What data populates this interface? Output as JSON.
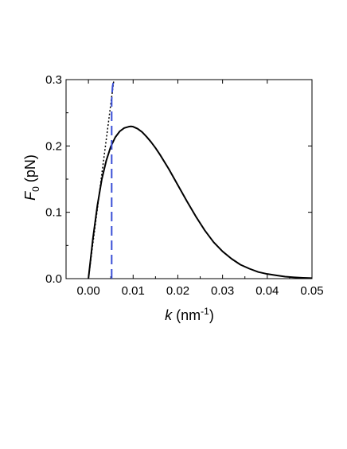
{
  "chart_data": {
    "type": "line",
    "title": "",
    "xlabel_var": "k",
    "xlabel_unit": " (nm",
    "xlabel_exp": "-1",
    "xlabel_close": ")",
    "ylabel_var": "F",
    "ylabel_sub": "0",
    "ylabel_unit": " (pN)",
    "xlim": [
      -0.005,
      0.05
    ],
    "ylim": [
      0,
      0.3
    ],
    "xticks": [
      0.0,
      0.01,
      0.02,
      0.03,
      0.04,
      0.05
    ],
    "xtick_labels": [
      "0.00",
      "0.01",
      "0.02",
      "0.03",
      "0.04",
      "0.05"
    ],
    "yticks": [
      0.0,
      0.1,
      0.2,
      0.3
    ],
    "ytick_labels": [
      "0.0",
      "0.1",
      "0.2",
      "0.3"
    ],
    "grid": false,
    "legend": "none",
    "series": [
      {
        "style": "solid",
        "color": "#000000",
        "x": [
          0,
          0.001,
          0.002,
          0.003,
          0.004,
          0.005,
          0.006,
          0.007,
          0.008,
          0.009,
          0.0095,
          0.01,
          0.011,
          0.012,
          0.013,
          0.014,
          0.015,
          0.016,
          0.018,
          0.02,
          0.022,
          0.024,
          0.026,
          0.028,
          0.03,
          0.032,
          0.034,
          0.036,
          0.038,
          0.04,
          0.042,
          0.044,
          0.046,
          0.048,
          0.05
        ],
        "y": [
          0,
          0.06,
          0.11,
          0.15,
          0.178,
          0.199,
          0.213,
          0.222,
          0.227,
          0.229,
          0.2295,
          0.229,
          0.226,
          0.221,
          0.214,
          0.206,
          0.197,
          0.187,
          0.165,
          0.141,
          0.117,
          0.094,
          0.073,
          0.055,
          0.041,
          0.03,
          0.021,
          0.015,
          0.01,
          0.007,
          0.005,
          0.003,
          0.002,
          0.0012,
          0.0007
        ]
      },
      {
        "style": "dotted",
        "color": "#000000",
        "x": [
          0,
          0.001,
          0.002,
          0.003,
          0.004,
          0.005,
          0.0057
        ],
        "y": [
          0,
          0.053,
          0.105,
          0.158,
          0.21,
          0.263,
          0.3
        ]
      },
      {
        "style": "dashed",
        "color": "#3a4fd6",
        "x": [
          0.0052,
          0.0052,
          0.0054,
          0.0057
        ],
        "y": [
          0,
          0.27,
          0.29,
          0.3
        ]
      }
    ]
  }
}
